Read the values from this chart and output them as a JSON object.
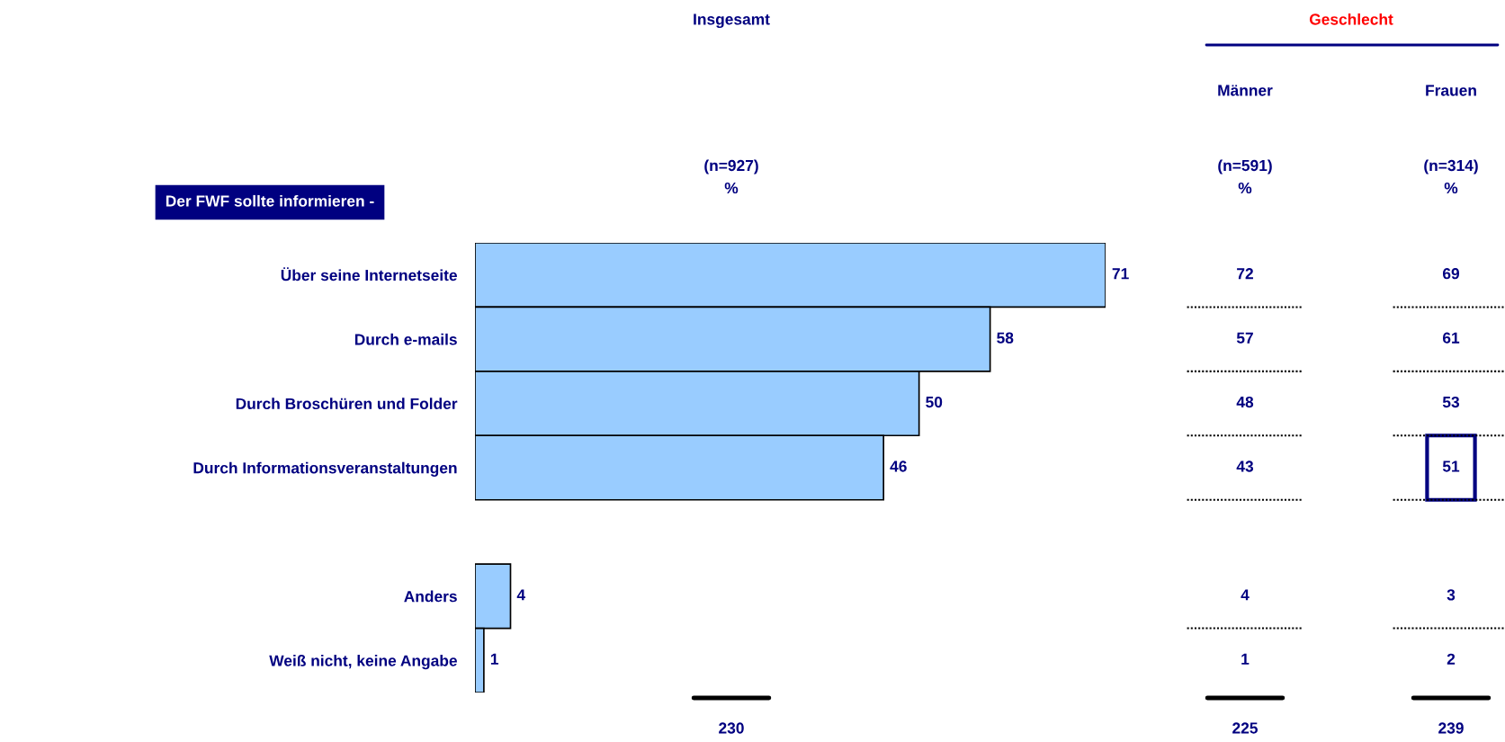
{
  "chart_data": [
    {
      "type": "bar",
      "orientation": "horizontal",
      "data_labels": true,
      "title": "Insgesamt",
      "categories": [
        "Über seine Internetseite",
        "Durch e-mails",
        "Durch Broschüren und Folder",
        "Durch Informationsveranstaltungen",
        null,
        "Anders",
        "Weiß nicht, keine Angabe"
      ],
      "values": [
        71,
        58,
        50,
        46,
        null,
        4,
        1
      ],
      "color": "#99ccff",
      "annotations": [
        "Der FWF sollte informieren -",
        "(n=927)\n%",
        "230"
      ]
    },
    {
      "type": "other",
      "data_labels": true,
      "title": "Männer",
      "categories": [
        null,
        null,
        null,
        null,
        null,
        null,
        null
      ],
      "values": [
        72,
        57,
        48,
        43,
        null,
        4,
        1
      ],
      "annotations": [
        "Geschlecht",
        "(n=591)\n%",
        "225"
      ]
    },
    {
      "type": "other",
      "data_labels": true,
      "title": "Frauen",
      "categories": [
        null,
        null,
        null,
        null,
        null,
        null,
        null
      ],
      "values": [
        69,
        61,
        53,
        51,
        null,
        3,
        2
      ],
      "annotations": [
        "(n=314)\n%",
        "239"
      ]
    }
  ]
}
